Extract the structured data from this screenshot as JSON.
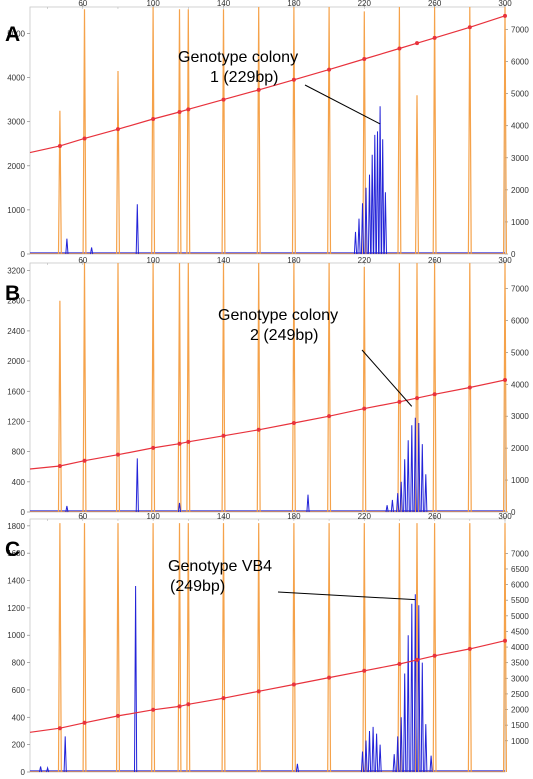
{
  "chart_data": [
    {
      "type": "line",
      "panel_label": "A",
      "annotation": [
        "Genotype colony",
        "1 (229bp)"
      ],
      "x": {
        "ticks": [
          60,
          100,
          140,
          180,
          220,
          260,
          300
        ],
        "range": [
          30,
          300
        ]
      },
      "y_left": {
        "ticks": [
          0,
          1000,
          2000,
          3000,
          4000,
          5000
        ],
        "range": [
          0,
          5600
        ]
      },
      "y_right": {
        "ticks": [
          0,
          1000,
          2000,
          3000,
          4000,
          5000,
          6000,
          7000
        ],
        "range": [
          0,
          7700
        ]
      },
      "colors": {
        "size_standard": "#f5a24a",
        "sample": "#2323d8",
        "calibration": "#e8323c"
      },
      "size_standard_peaks": [
        {
          "x": 47,
          "y": 3250
        },
        {
          "x": 61,
          "y": 5550
        },
        {
          "x": 80,
          "y": 4150
        },
        {
          "x": 100,
          "y": 5600
        },
        {
          "x": 115,
          "y": 5550
        },
        {
          "x": 120,
          "y": 5550
        },
        {
          "x": 140,
          "y": 5550
        },
        {
          "x": 160,
          "y": 5600
        },
        {
          "x": 180,
          "y": 5600
        },
        {
          "x": 200,
          "y": 5600
        },
        {
          "x": 220,
          "y": 5500
        },
        {
          "x": 240,
          "y": 5600
        },
        {
          "x": 250,
          "y": 3600
        },
        {
          "x": 260,
          "y": 5600
        },
        {
          "x": 280,
          "y": 5600
        },
        {
          "x": 300,
          "y": 5600
        }
      ],
      "sample_peaks": [
        {
          "x": 51,
          "y": 350
        },
        {
          "x": 65,
          "y": 150
        },
        {
          "x": 91,
          "y": 1130
        },
        {
          "x": 215,
          "y": 500
        },
        {
          "x": 217,
          "y": 800
        },
        {
          "x": 219,
          "y": 1150
        },
        {
          "x": 221,
          "y": 1500
        },
        {
          "x": 223,
          "y": 1800
        },
        {
          "x": 224.5,
          "y": 2250
        },
        {
          "x": 226,
          "y": 2700
        },
        {
          "x": 227.5,
          "y": 2780
        },
        {
          "x": 229,
          "y": 3350
        },
        {
          "x": 230.5,
          "y": 2600
        },
        {
          "x": 232,
          "y": 1400
        }
      ],
      "calibration_curve": [
        {
          "x": 30,
          "y": 2300
        },
        {
          "x": 47,
          "y": 2450
        },
        {
          "x": 61,
          "y": 2620
        },
        {
          "x": 80,
          "y": 2830
        },
        {
          "x": 100,
          "y": 3060
        },
        {
          "x": 115,
          "y": 3220
        },
        {
          "x": 120,
          "y": 3280
        },
        {
          "x": 140,
          "y": 3500
        },
        {
          "x": 160,
          "y": 3720
        },
        {
          "x": 180,
          "y": 3950
        },
        {
          "x": 200,
          "y": 4180
        },
        {
          "x": 220,
          "y": 4420
        },
        {
          "x": 240,
          "y": 4660
        },
        {
          "x": 250,
          "y": 4780
        },
        {
          "x": 260,
          "y": 4900
        },
        {
          "x": 280,
          "y": 5140
        },
        {
          "x": 300,
          "y": 5400
        }
      ],
      "annotation_target": {
        "x": 229,
        "y": 2950
      }
    },
    {
      "type": "line",
      "panel_label": "B",
      "annotation": [
        "Genotype colony",
        "2 (249bp)"
      ],
      "x": {
        "ticks": [
          60,
          100,
          140,
          180,
          220,
          260,
          300
        ],
        "range": [
          30,
          300
        ]
      },
      "y_left": {
        "ticks": [
          0,
          400,
          800,
          1200,
          1600,
          2000,
          2400,
          2800,
          3200
        ],
        "range": [
          0,
          3300
        ]
      },
      "y_right": {
        "ticks": [
          0,
          1000,
          2000,
          3000,
          4000,
          5000,
          6000,
          7000
        ],
        "range": [
          0,
          7800
        ]
      },
      "colors": {
        "size_standard": "#f5a24a",
        "sample": "#2323d8",
        "calibration": "#e8323c"
      },
      "size_standard_peaks": [
        {
          "x": 47,
          "y": 2800
        },
        {
          "x": 61,
          "y": 3300
        },
        {
          "x": 80,
          "y": 3300
        },
        {
          "x": 100,
          "y": 3300
        },
        {
          "x": 115,
          "y": 3300
        },
        {
          "x": 120,
          "y": 3300
        },
        {
          "x": 140,
          "y": 3300
        },
        {
          "x": 160,
          "y": 3300
        },
        {
          "x": 180,
          "y": 3300
        },
        {
          "x": 200,
          "y": 3300
        },
        {
          "x": 220,
          "y": 3250
        },
        {
          "x": 240,
          "y": 3300
        },
        {
          "x": 250,
          "y": 3300
        },
        {
          "x": 260,
          "y": 3300
        },
        {
          "x": 280,
          "y": 3300
        },
        {
          "x": 300,
          "y": 3300
        }
      ],
      "sample_peaks": [
        {
          "x": 51,
          "y": 80
        },
        {
          "x": 91,
          "y": 710
        },
        {
          "x": 115,
          "y": 120
        },
        {
          "x": 188,
          "y": 230
        },
        {
          "x": 233,
          "y": 90
        },
        {
          "x": 236,
          "y": 160
        },
        {
          "x": 239,
          "y": 250
        },
        {
          "x": 241,
          "y": 400
        },
        {
          "x": 243,
          "y": 700
        },
        {
          "x": 245,
          "y": 950
        },
        {
          "x": 247,
          "y": 1150
        },
        {
          "x": 249,
          "y": 1250
        },
        {
          "x": 251,
          "y": 1180
        },
        {
          "x": 253,
          "y": 900
        },
        {
          "x": 255,
          "y": 500
        }
      ],
      "calibration_curve": [
        {
          "x": 30,
          "y": 570
        },
        {
          "x": 47,
          "y": 610
        },
        {
          "x": 61,
          "y": 680
        },
        {
          "x": 80,
          "y": 760
        },
        {
          "x": 100,
          "y": 850
        },
        {
          "x": 115,
          "y": 905
        },
        {
          "x": 120,
          "y": 930
        },
        {
          "x": 140,
          "y": 1010
        },
        {
          "x": 160,
          "y": 1090
        },
        {
          "x": 180,
          "y": 1180
        },
        {
          "x": 200,
          "y": 1270
        },
        {
          "x": 220,
          "y": 1370
        },
        {
          "x": 240,
          "y": 1460
        },
        {
          "x": 250,
          "y": 1510
        },
        {
          "x": 260,
          "y": 1560
        },
        {
          "x": 280,
          "y": 1650
        },
        {
          "x": 300,
          "y": 1750
        }
      ],
      "annotation_target": {
        "x": 247,
        "y": 1400
      }
    },
    {
      "type": "line",
      "panel_label": "C",
      "annotation": [
        "Genotype VB4",
        "(249bp)"
      ],
      "x": {
        "ticks": [
          60,
          100,
          140,
          180,
          220,
          260,
          300
        ],
        "range": [
          30,
          300
        ]
      },
      "y_left": {
        "ticks": [
          0,
          200,
          400,
          600,
          800,
          1000,
          1200,
          1400,
          1600,
          1800
        ],
        "range": [
          0,
          1850
        ]
      },
      "y_right": {
        "ticks": [
          1000,
          1500,
          2000,
          2500,
          3000,
          3500,
          4000,
          4500,
          5000,
          5500,
          6000,
          6500,
          7000
        ],
        "range": [
          0,
          8100
        ]
      },
      "colors": {
        "size_standard": "#f5a24a",
        "sample": "#2323d8",
        "calibration": "#e8323c"
      },
      "size_standard_peaks": [
        {
          "x": 47,
          "y": 1820
        },
        {
          "x": 61,
          "y": 1820
        },
        {
          "x": 80,
          "y": 1820
        },
        {
          "x": 100,
          "y": 1820
        },
        {
          "x": 115,
          "y": 1820
        },
        {
          "x": 120,
          "y": 1820
        },
        {
          "x": 140,
          "y": 1820
        },
        {
          "x": 160,
          "y": 1820
        },
        {
          "x": 180,
          "y": 1820
        },
        {
          "x": 200,
          "y": 1820
        },
        {
          "x": 220,
          "y": 1820
        },
        {
          "x": 240,
          "y": 1820
        },
        {
          "x": 250,
          "y": 1820
        },
        {
          "x": 260,
          "y": 1820
        },
        {
          "x": 280,
          "y": 1820
        },
        {
          "x": 300,
          "y": 1820
        }
      ],
      "sample_peaks": [
        {
          "x": 36,
          "y": 40
        },
        {
          "x": 40,
          "y": 30
        },
        {
          "x": 50,
          "y": 260
        },
        {
          "x": 90,
          "y": 1360
        },
        {
          "x": 182,
          "y": 60
        },
        {
          "x": 219,
          "y": 150
        },
        {
          "x": 221,
          "y": 230
        },
        {
          "x": 223,
          "y": 300
        },
        {
          "x": 225,
          "y": 330
        },
        {
          "x": 227,
          "y": 280
        },
        {
          "x": 229,
          "y": 200
        },
        {
          "x": 237,
          "y": 130
        },
        {
          "x": 239,
          "y": 260
        },
        {
          "x": 241,
          "y": 400
        },
        {
          "x": 243,
          "y": 720
        },
        {
          "x": 245,
          "y": 1000
        },
        {
          "x": 247,
          "y": 1230
        },
        {
          "x": 249,
          "y": 1300
        },
        {
          "x": 251,
          "y": 1220
        },
        {
          "x": 253,
          "y": 800
        },
        {
          "x": 255,
          "y": 350
        },
        {
          "x": 258,
          "y": 120
        }
      ],
      "calibration_curve": [
        {
          "x": 30,
          "y": 290
        },
        {
          "x": 47,
          "y": 320
        },
        {
          "x": 61,
          "y": 360
        },
        {
          "x": 80,
          "y": 410
        },
        {
          "x": 100,
          "y": 455
        },
        {
          "x": 115,
          "y": 480
        },
        {
          "x": 120,
          "y": 495
        },
        {
          "x": 140,
          "y": 540
        },
        {
          "x": 160,
          "y": 590
        },
        {
          "x": 180,
          "y": 640
        },
        {
          "x": 200,
          "y": 690
        },
        {
          "x": 220,
          "y": 740
        },
        {
          "x": 240,
          "y": 790
        },
        {
          "x": 250,
          "y": 820
        },
        {
          "x": 260,
          "y": 850
        },
        {
          "x": 280,
          "y": 900
        },
        {
          "x": 300,
          "y": 960
        }
      ],
      "annotation_target": {
        "x": 249,
        "y": 1260
      }
    }
  ]
}
